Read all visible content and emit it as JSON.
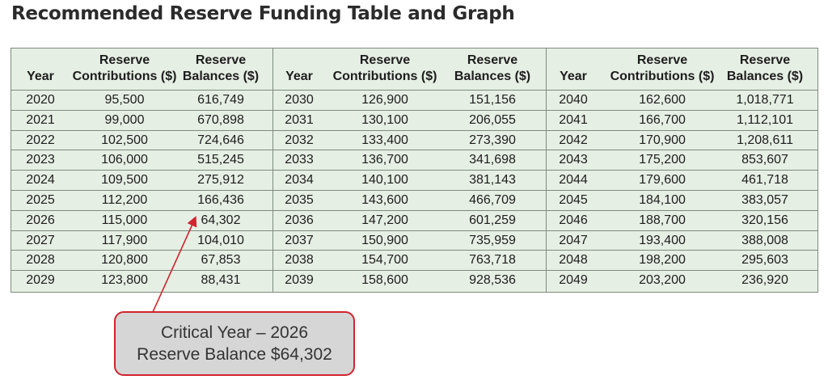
{
  "title": "Recommended Reserve Funding Table and Graph",
  "headers": {
    "year": "Year",
    "contrib_line1": "Reserve",
    "contrib_line2": "Contributions ($)",
    "bal_line1": "Reserve",
    "bal_line2": "Balances ($)"
  },
  "panels": [
    {
      "rows": [
        {
          "year": "2020",
          "contrib": "95,500",
          "balance": "616,749"
        },
        {
          "year": "2021",
          "contrib": "99,000",
          "balance": "670,898"
        },
        {
          "year": "2022",
          "contrib": "102,500",
          "balance": "724,646"
        },
        {
          "year": "2023",
          "contrib": "106,000",
          "balance": "515,245"
        },
        {
          "year": "2024",
          "contrib": "109,500",
          "balance": "275,912"
        },
        {
          "year": "2025",
          "contrib": "112,200",
          "balance": "166,436"
        },
        {
          "year": "2026",
          "contrib": "115,000",
          "balance": "64,302"
        },
        {
          "year": "2027",
          "contrib": "117,900",
          "balance": "104,010"
        },
        {
          "year": "2028",
          "contrib": "120,800",
          "balance": "67,853"
        },
        {
          "year": "2029",
          "contrib": "123,800",
          "balance": "88,431"
        }
      ]
    },
    {
      "rows": [
        {
          "year": "2030",
          "contrib": "126,900",
          "balance": "151,156"
        },
        {
          "year": "2031",
          "contrib": "130,100",
          "balance": "206,055"
        },
        {
          "year": "2032",
          "contrib": "133,400",
          "balance": "273,390"
        },
        {
          "year": "2033",
          "contrib": "136,700",
          "balance": "341,698"
        },
        {
          "year": "2034",
          "contrib": "140,100",
          "balance": "381,143"
        },
        {
          "year": "2035",
          "contrib": "143,600",
          "balance": "466,709"
        },
        {
          "year": "2036",
          "contrib": "147,200",
          "balance": "601,259"
        },
        {
          "year": "2037",
          "contrib": "150,900",
          "balance": "735,959"
        },
        {
          "year": "2038",
          "contrib": "154,700",
          "balance": "763,718"
        },
        {
          "year": "2039",
          "contrib": "158,600",
          "balance": "928,536"
        }
      ]
    },
    {
      "rows": [
        {
          "year": "2040",
          "contrib": "162,600",
          "balance": "1,018,771"
        },
        {
          "year": "2041",
          "contrib": "166,700",
          "balance": "1,112,101"
        },
        {
          "year": "2042",
          "contrib": "170,900",
          "balance": "1,208,611"
        },
        {
          "year": "2043",
          "contrib": "175,200",
          "balance": "853,607"
        },
        {
          "year": "2044",
          "contrib": "179,600",
          "balance": "461,718"
        },
        {
          "year": "2045",
          "contrib": "184,100",
          "balance": "383,057"
        },
        {
          "year": "2046",
          "contrib": "188,700",
          "balance": "320,156"
        },
        {
          "year": "2047",
          "contrib": "193,400",
          "balance": "388,008"
        },
        {
          "year": "2048",
          "contrib": "198,200",
          "balance": "295,603"
        },
        {
          "year": "2049",
          "contrib": "203,200",
          "balance": "236,920"
        }
      ]
    }
  ],
  "callout": {
    "line1": "Critical Year – 2026",
    "line2": "Reserve Balance $64,302"
  },
  "colors": {
    "table_bg": "#e6efe4",
    "grid": "#7d8b7d",
    "callout_border": "#d0242e",
    "callout_bg": "#d6d6d6"
  }
}
